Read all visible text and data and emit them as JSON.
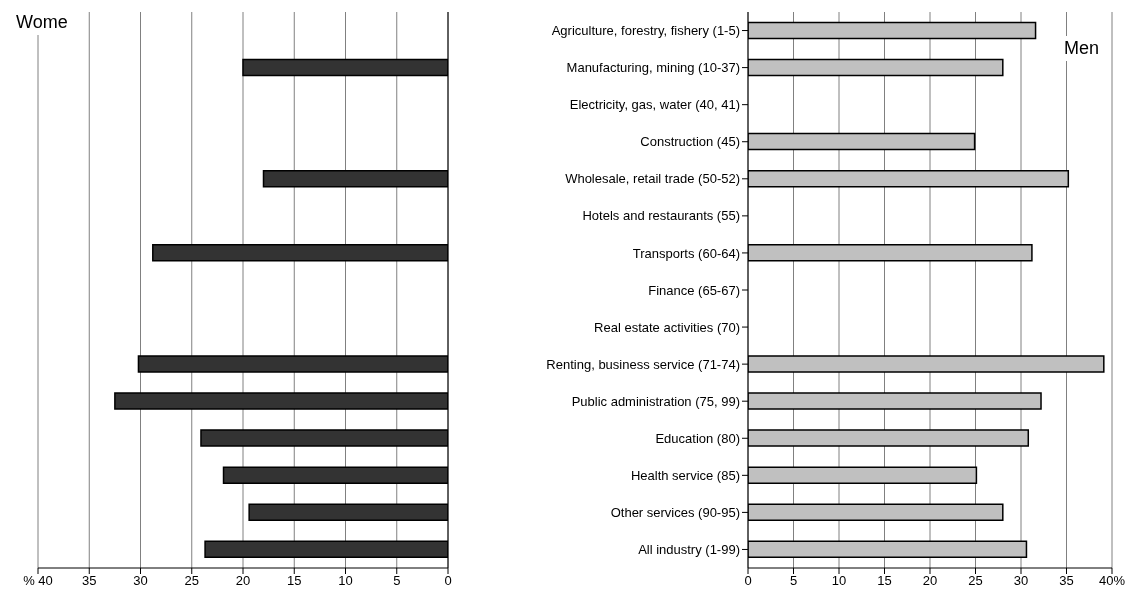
{
  "chart_data": [
    {
      "type": "bar",
      "orientation": "horizontal",
      "title": "Wome",
      "categories": [
        null,
        null,
        null,
        null,
        null,
        null,
        null,
        null,
        null,
        null,
        null,
        null,
        null,
        null,
        null
      ],
      "values": [
        null,
        20.0,
        null,
        null,
        18.0,
        null,
        28.8,
        null,
        null,
        30.2,
        32.5,
        24.1,
        21.9,
        19.4,
        23.7
      ],
      "color": "#333333",
      "xlim": [
        40,
        0
      ],
      "xticks": [
        {
          "value": 40,
          "label": "% 40"
        },
        35,
        30,
        25,
        20,
        15,
        10,
        5,
        0
      ],
      "grid": "x",
      "tick_labels": "x"
    },
    {
      "type": "bar",
      "orientation": "horizontal",
      "title": "Men",
      "categories": [
        "Agriculture, forestry, fishery (1-5)",
        "Manufacturing, mining (10-37)",
        "Electricity, gas, water (40, 41)",
        "Construction (45)",
        "Wholesale, retail trade (50-52)",
        "Hotels and restaurants (55)",
        "Transports (60-64)",
        "Finance (65-67)",
        "Real estate activities (70)",
        "Renting, business service (71-74)",
        "Public administration (75, 99)",
        "Education (80)",
        "Health service (85)",
        "Other services (90-95)",
        "All industry (1-99)"
      ],
      "values": [
        31.6,
        28.0,
        null,
        24.9,
        35.2,
        null,
        31.2,
        null,
        null,
        39.1,
        32.2,
        30.8,
        25.1,
        28.0,
        30.6
      ],
      "color": "#c0c0c0",
      "xlim": [
        0,
        40
      ],
      "xticks": [
        0,
        5,
        10,
        15,
        20,
        25,
        30,
        35,
        {
          "value": 40,
          "label": "40%"
        }
      ],
      "grid": "x"
    }
  ]
}
